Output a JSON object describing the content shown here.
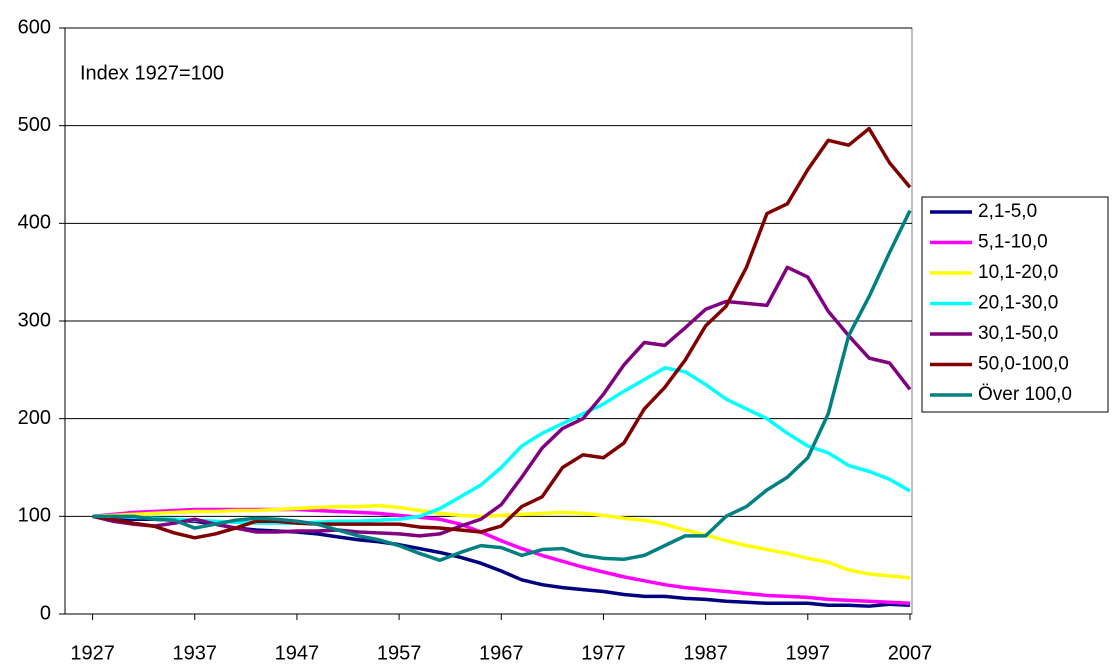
{
  "chart_data": {
    "type": "line",
    "annotation": "Index 1927=100",
    "x": [
      1927,
      1929,
      1931,
      1933,
      1935,
      1937,
      1939,
      1941,
      1943,
      1945,
      1947,
      1949,
      1951,
      1953,
      1955,
      1957,
      1959,
      1961,
      1963,
      1965,
      1967,
      1969,
      1971,
      1973,
      1975,
      1977,
      1979,
      1981,
      1983,
      1985,
      1987,
      1989,
      1991,
      1993,
      1995,
      1997,
      1999,
      2001,
      2003,
      2005,
      2007
    ],
    "xlim": [
      1924.3,
      2007.2
    ],
    "xticks": [
      1927,
      1937,
      1947,
      1957,
      1967,
      1977,
      1987,
      1997,
      2007
    ],
    "ylim": [
      0,
      600
    ],
    "yticks": [
      0,
      100,
      200,
      300,
      400,
      500,
      600
    ],
    "grid": true,
    "legend": "right",
    "series": [
      {
        "name": "2,1-5,0",
        "color": "#000080",
        "values": [
          100,
          98,
          97,
          97,
          96,
          95,
          92,
          88,
          86,
          85,
          84,
          82,
          79,
          76,
          74,
          71,
          67,
          63,
          58,
          52,
          44,
          35,
          30,
          27,
          25,
          23,
          20,
          18,
          18,
          16,
          15,
          13,
          12,
          11,
          11,
          11,
          9,
          9,
          8,
          10,
          9
        ]
      },
      {
        "name": "5,1-10,0",
        "color": "#ff00ff",
        "values": [
          100,
          102,
          104,
          105,
          106,
          107,
          107,
          107,
          107,
          107,
          107,
          106,
          105,
          104,
          103,
          101,
          99,
          97,
          92,
          84,
          75,
          67,
          60,
          54,
          48,
          43,
          38,
          34,
          30,
          27,
          25,
          23,
          21,
          19,
          18,
          17,
          15,
          14,
          13,
          12,
          11
        ]
      },
      {
        "name": "10,1-20,0",
        "color": "#ffff00",
        "values": [
          100,
          101,
          102,
          103,
          104,
          105,
          105,
          106,
          106,
          107,
          108,
          109,
          110,
          110,
          111,
          109,
          106,
          103,
          101,
          100,
          101,
          102,
          103,
          104,
          103,
          101,
          98,
          96,
          92,
          86,
          81,
          75,
          70,
          66,
          62,
          57,
          53,
          45,
          41,
          39,
          37
        ]
      },
      {
        "name": "20,1-30,0",
        "color": "#00ffff",
        "values": [
          100,
          100,
          99,
          98,
          97,
          96,
          95,
          94,
          93,
          93,
          93,
          94,
          95,
          95,
          96,
          97,
          100,
          108,
          120,
          132,
          150,
          172,
          185,
          195,
          205,
          215,
          228,
          240,
          252,
          248,
          235,
          220,
          210,
          200,
          185,
          172,
          165,
          152,
          146,
          138,
          126
        ]
      },
      {
        "name": "30,1-50,0",
        "color": "#800080",
        "values": [
          100,
          95,
          92,
          90,
          93,
          97,
          92,
          88,
          84,
          84,
          85,
          85,
          86,
          84,
          83,
          82,
          80,
          82,
          90,
          97,
          112,
          140,
          170,
          190,
          200,
          225,
          255,
          278,
          275,
          293,
          312,
          320,
          318,
          316,
          355,
          345,
          310,
          285,
          262,
          257,
          230
        ]
      },
      {
        "name": "50,0-100,0",
        "color": "#800000",
        "values": [
          100,
          97,
          93,
          90,
          83,
          78,
          82,
          88,
          95,
          95,
          93,
          92,
          92,
          92,
          92,
          92,
          89,
          88,
          86,
          84,
          90,
          110,
          120,
          150,
          163,
          160,
          175,
          210,
          232,
          260,
          295,
          315,
          355,
          410,
          420,
          455,
          485,
          480,
          497,
          462,
          437
        ]
      },
      {
        "name": "Över 100,0",
        "color": "#008080",
        "values": [
          100,
          100,
          100,
          97,
          96,
          88,
          92,
          96,
          98,
          97,
          95,
          92,
          86,
          80,
          76,
          70,
          62,
          55,
          63,
          70,
          68,
          60,
          66,
          67,
          60,
          57,
          56,
          60,
          70,
          80,
          80,
          100,
          110,
          127,
          140,
          160,
          205,
          285,
          325,
          370,
          413
        ]
      }
    ]
  }
}
